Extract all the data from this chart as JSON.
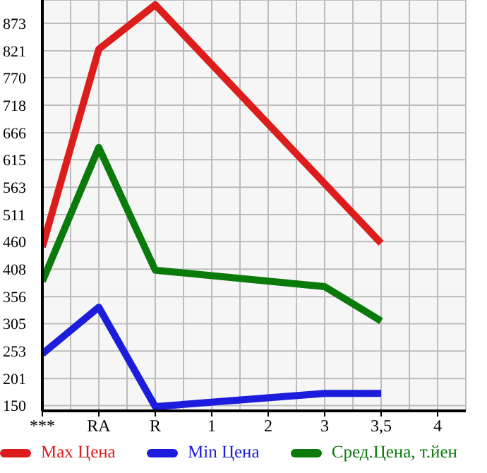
{
  "chart_data": {
    "type": "line",
    "categories": [
      "***",
      "RA",
      "R",
      "1",
      "2",
      "3",
      "3,5",
      "4"
    ],
    "series": [
      {
        "name": "Max Цена",
        "color": "#dd1c1c",
        "values": [
          450,
          824,
          908,
          null,
          null,
          null,
          457,
          null
        ]
      },
      {
        "name": "Min Цена",
        "color": "#1c1cdc",
        "values": [
          248,
          336,
          148,
          null,
          null,
          173,
          173,
          null
        ]
      },
      {
        "name": "Сред.Цена, т.йен",
        "color": "#0a7a0a",
        "values": [
          385,
          638,
          406,
          null,
          null,
          375,
          310,
          null
        ]
      }
    ],
    "ylim": [
      140,
      917
    ],
    "yticks": [
      150,
      201,
      253,
      305,
      356,
      408,
      460,
      511,
      563,
      615,
      666,
      718,
      770,
      821,
      873
    ],
    "grid": true,
    "legend": "bottom",
    "marker": "none",
    "line_style": "solid"
  }
}
